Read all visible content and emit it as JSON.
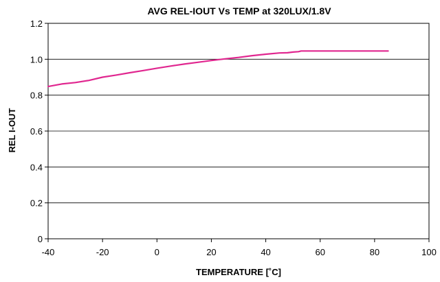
{
  "chart_data": {
    "type": "line",
    "title": "AVG REL-IOUT Vs TEMP at 320LUX/1.8V",
    "xlabel": "TEMPERATURE [˚C]",
    "ylabel": "REL I-OUT",
    "xlim": [
      -40,
      100
    ],
    "ylim": [
      0,
      1.2
    ],
    "xticks": [
      -40,
      -20,
      0,
      20,
      40,
      60,
      80,
      100
    ],
    "yticks": [
      0,
      0.2,
      0.4,
      0.6,
      0.8,
      1.0,
      1.2
    ],
    "xtick_labels": [
      "-40",
      "-20",
      "0",
      "20",
      "40",
      "60",
      "80",
      "100"
    ],
    "ytick_labels": [
      "0",
      "0.2",
      "0.4",
      "0.6",
      "0.8",
      "1.0",
      "1.2"
    ],
    "grid": "horizontal",
    "legend": "none",
    "series": [
      {
        "color": "#e0268f",
        "x": [
          -40,
          -35,
          -30,
          -25,
          -20,
          -15,
          -10,
          -5,
          0,
          5,
          10,
          15,
          20,
          25,
          30,
          35,
          40,
          45,
          48,
          50,
          52,
          53,
          55,
          60,
          65,
          70,
          75,
          80,
          85
        ],
        "y": [
          0.848,
          0.862,
          0.87,
          0.882,
          0.9,
          0.912,
          0.925,
          0.937,
          0.95,
          0.962,
          0.973,
          0.983,
          0.993,
          1.002,
          1.01,
          1.02,
          1.028,
          1.035,
          1.036,
          1.04,
          1.042,
          1.046,
          1.046,
          1.046,
          1.046,
          1.046,
          1.046,
          1.046,
          1.046
        ]
      }
    ]
  }
}
